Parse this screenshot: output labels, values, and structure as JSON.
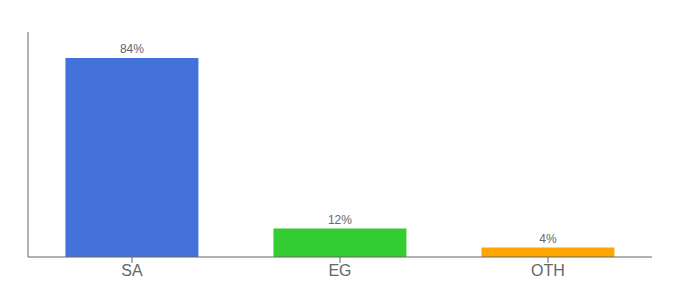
{
  "chart_data": {
    "type": "bar",
    "categories": [
      "SA",
      "EG",
      "OTH"
    ],
    "values": [
      84,
      12,
      4
    ],
    "value_labels": [
      "84%",
      "12%",
      "4%"
    ],
    "colors": [
      "#4472db",
      "#33cc33",
      "#ffa500"
    ],
    "ylim": [
      0,
      95
    ],
    "tick_labels": "x",
    "grid": false,
    "data_labels": true
  }
}
